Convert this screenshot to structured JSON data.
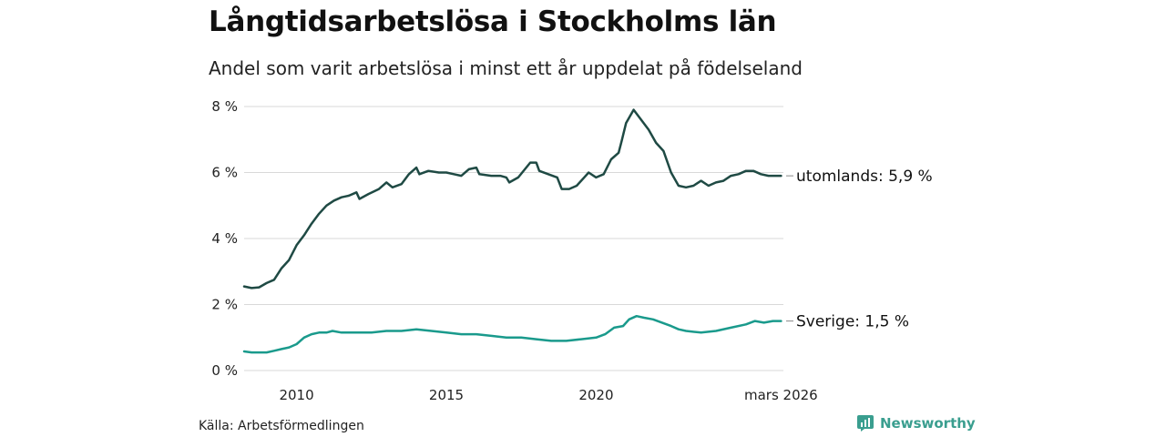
{
  "title": "Långtidsarbetslösa i Stockholms län",
  "subtitle": "Andel som varit arbetslösa i minst ett år uppdelat på födelseland",
  "source": "Källa: Arbetsförmedlingen",
  "brand": "Newsworthy",
  "colors": {
    "utomlands": "#1f4a44",
    "sverige": "#1a9a8c",
    "grid": "#d9d9d9",
    "brand": "#3a9e8f"
  },
  "chart_data": {
    "type": "line",
    "title": "Långtidsarbetslösa i Stockholms län",
    "subtitle": "Andel som varit arbetslösa i minst ett år uppdelat på födelseland",
    "xlabel": "",
    "ylabel": "",
    "xlim": [
      2008.25,
      2026.25
    ],
    "ylim": [
      0,
      8
    ],
    "yticks": [
      0,
      2,
      4,
      6,
      8
    ],
    "ytick_labels": [
      "0 %",
      "2 %",
      "4 %",
      "6 %",
      "8 %"
    ],
    "xticks": [
      2010,
      2015,
      2020,
      2026.17
    ],
    "xtick_labels": [
      "2010",
      "2015",
      "2020",
      "mars 2026"
    ],
    "grid": true,
    "series": [
      {
        "name": "utomlands",
        "end_label": "utomlands: 5,9 %",
        "points": [
          [
            2008.25,
            2.55
          ],
          [
            2008.5,
            2.5
          ],
          [
            2008.75,
            2.52
          ],
          [
            2009.0,
            2.65
          ],
          [
            2009.25,
            2.75
          ],
          [
            2009.5,
            3.1
          ],
          [
            2009.75,
            3.35
          ],
          [
            2010.0,
            3.8
          ],
          [
            2010.25,
            4.1
          ],
          [
            2010.5,
            4.45
          ],
          [
            2010.75,
            4.75
          ],
          [
            2011.0,
            5.0
          ],
          [
            2011.25,
            5.15
          ],
          [
            2011.5,
            5.25
          ],
          [
            2011.75,
            5.3
          ],
          [
            2012.0,
            5.4
          ],
          [
            2012.1,
            5.2
          ],
          [
            2012.4,
            5.35
          ],
          [
            2012.75,
            5.5
          ],
          [
            2013.0,
            5.7
          ],
          [
            2013.2,
            5.55
          ],
          [
            2013.5,
            5.65
          ],
          [
            2013.75,
            5.95
          ],
          [
            2014.0,
            6.15
          ],
          [
            2014.1,
            5.95
          ],
          [
            2014.4,
            6.05
          ],
          [
            2014.75,
            6.0
          ],
          [
            2015.0,
            6.0
          ],
          [
            2015.25,
            5.95
          ],
          [
            2015.5,
            5.9
          ],
          [
            2015.75,
            6.1
          ],
          [
            2016.0,
            6.15
          ],
          [
            2016.1,
            5.95
          ],
          [
            2016.5,
            5.9
          ],
          [
            2016.8,
            5.9
          ],
          [
            2017.0,
            5.85
          ],
          [
            2017.1,
            5.7
          ],
          [
            2017.4,
            5.85
          ],
          [
            2017.8,
            6.3
          ],
          [
            2018.0,
            6.3
          ],
          [
            2018.1,
            6.05
          ],
          [
            2018.4,
            5.95
          ],
          [
            2018.7,
            5.85
          ],
          [
            2018.85,
            5.5
          ],
          [
            2019.1,
            5.5
          ],
          [
            2019.35,
            5.6
          ],
          [
            2019.6,
            5.85
          ],
          [
            2019.75,
            6.0
          ],
          [
            2020.0,
            5.85
          ],
          [
            2020.25,
            5.95
          ],
          [
            2020.5,
            6.4
          ],
          [
            2020.75,
            6.6
          ],
          [
            2020.85,
            6.95
          ],
          [
            2021.0,
            7.5
          ],
          [
            2021.25,
            7.9
          ],
          [
            2021.5,
            7.6
          ],
          [
            2021.75,
            7.3
          ],
          [
            2022.0,
            6.9
          ],
          [
            2022.25,
            6.65
          ],
          [
            2022.5,
            6.0
          ],
          [
            2022.75,
            5.6
          ],
          [
            2023.0,
            5.55
          ],
          [
            2023.25,
            5.6
          ],
          [
            2023.5,
            5.75
          ],
          [
            2023.75,
            5.6
          ],
          [
            2024.0,
            5.7
          ],
          [
            2024.25,
            5.75
          ],
          [
            2024.5,
            5.9
          ],
          [
            2024.75,
            5.95
          ],
          [
            2025.0,
            6.05
          ],
          [
            2025.25,
            6.05
          ],
          [
            2025.5,
            5.95
          ],
          [
            2025.75,
            5.9
          ],
          [
            2026.0,
            5.9
          ],
          [
            2026.17,
            5.9
          ]
        ]
      },
      {
        "name": "Sverige",
        "end_label": "Sverige: 1,5 %",
        "points": [
          [
            2008.25,
            0.58
          ],
          [
            2008.5,
            0.55
          ],
          [
            2008.75,
            0.55
          ],
          [
            2009.0,
            0.55
          ],
          [
            2009.25,
            0.6
          ],
          [
            2009.5,
            0.65
          ],
          [
            2009.75,
            0.7
          ],
          [
            2010.0,
            0.8
          ],
          [
            2010.25,
            1.0
          ],
          [
            2010.5,
            1.1
          ],
          [
            2010.75,
            1.15
          ],
          [
            2011.0,
            1.15
          ],
          [
            2011.2,
            1.2
          ],
          [
            2011.5,
            1.15
          ],
          [
            2011.75,
            1.15
          ],
          [
            2012.0,
            1.15
          ],
          [
            2012.5,
            1.15
          ],
          [
            2013.0,
            1.2
          ],
          [
            2013.5,
            1.2
          ],
          [
            2014.0,
            1.25
          ],
          [
            2014.5,
            1.2
          ],
          [
            2015.0,
            1.15
          ],
          [
            2015.5,
            1.1
          ],
          [
            2016.0,
            1.1
          ],
          [
            2016.5,
            1.05
          ],
          [
            2017.0,
            1.0
          ],
          [
            2017.5,
            1.0
          ],
          [
            2018.0,
            0.95
          ],
          [
            2018.5,
            0.9
          ],
          [
            2019.0,
            0.9
          ],
          [
            2019.5,
            0.95
          ],
          [
            2020.0,
            1.0
          ],
          [
            2020.3,
            1.1
          ],
          [
            2020.6,
            1.3
          ],
          [
            2020.9,
            1.35
          ],
          [
            2021.1,
            1.55
          ],
          [
            2021.35,
            1.65
          ],
          [
            2021.6,
            1.6
          ],
          [
            2021.9,
            1.55
          ],
          [
            2022.2,
            1.45
          ],
          [
            2022.5,
            1.35
          ],
          [
            2022.75,
            1.25
          ],
          [
            2023.0,
            1.2
          ],
          [
            2023.5,
            1.15
          ],
          [
            2024.0,
            1.2
          ],
          [
            2024.5,
            1.3
          ],
          [
            2025.0,
            1.4
          ],
          [
            2025.3,
            1.5
          ],
          [
            2025.6,
            1.45
          ],
          [
            2025.9,
            1.5
          ],
          [
            2026.17,
            1.5
          ]
        ]
      }
    ]
  }
}
